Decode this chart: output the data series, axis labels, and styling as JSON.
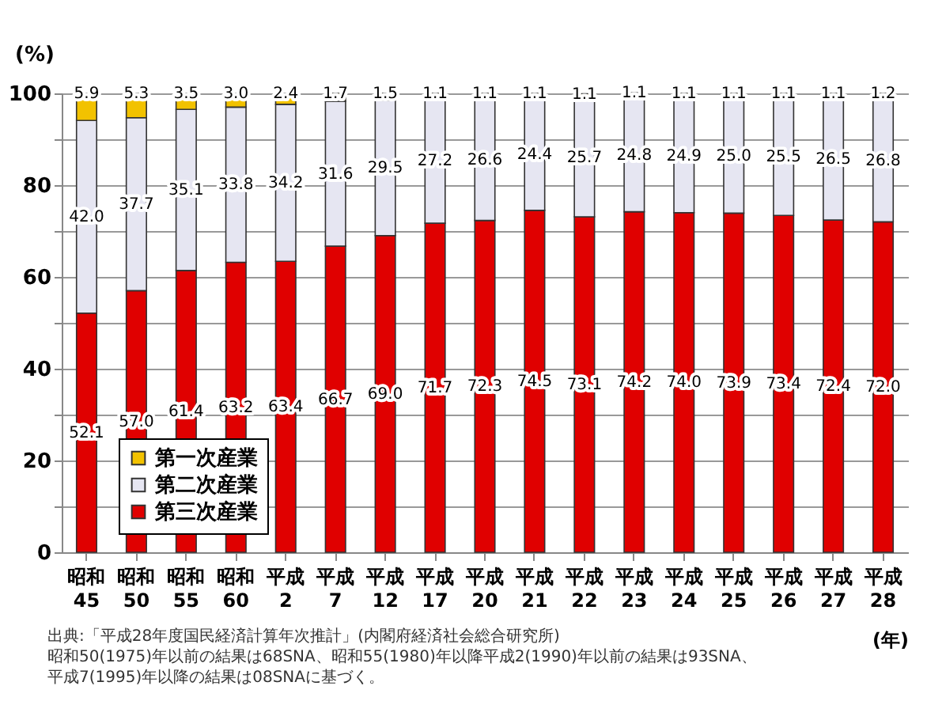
{
  "chart_data": {
    "type": "bar",
    "stacked": true,
    "ylabel": "(%)",
    "xlabel": "(年)",
    "categories": [
      "昭和 45",
      "昭和 50",
      "昭和 55",
      "昭和 60",
      "平成 2",
      "平成 7",
      "平成 12",
      "平成 17",
      "平成 20",
      "平成 21",
      "平成 22",
      "平成 23",
      "平成 24",
      "平成 25",
      "平成 26",
      "平成 27",
      "平成 28"
    ],
    "series": [
      {
        "name": "第三次産業",
        "color": "#e00000",
        "values": [
          52.1,
          57.0,
          61.4,
          63.2,
          63.4,
          66.7,
          69.0,
          71.7,
          72.3,
          74.5,
          73.1,
          74.2,
          74.0,
          73.9,
          73.4,
          72.4,
          72.0
        ],
        "value_labels": [
          "52.1",
          "57.0",
          "61.4",
          "63.2",
          "63.4",
          "66.7",
          "69.0",
          "71.7",
          "72.3",
          "74.5",
          "73.1",
          "74.2",
          "74.0",
          "73.9",
          "73.4",
          "72.4",
          "72.0"
        ]
      },
      {
        "name": "第二次産業",
        "color": "#e6e6f2",
        "values": [
          42.0,
          37.7,
          35.1,
          33.8,
          34.2,
          31.6,
          29.5,
          27.2,
          26.6,
          24.4,
          25.7,
          24.8,
          24.9,
          25.0,
          25.5,
          26.5,
          26.8
        ],
        "value_labels": [
          "42.0",
          "37.7",
          "35.1",
          "33.8",
          "34.2",
          "31.6",
          "29.5",
          "27.2",
          "26.6",
          "24.4",
          "25.7",
          "24.8",
          "24.9",
          "25.0",
          "25.5",
          "26.5",
          "26.8"
        ]
      },
      {
        "name": "第一次産業",
        "color": "#f2c200",
        "values": [
          5.9,
          5.3,
          3.5,
          3.0,
          2.4,
          1.7,
          1.5,
          1.1,
          1.1,
          1.1,
          1.1,
          1.1,
          1.1,
          1.1,
          1.1,
          1.1,
          1.2
        ],
        "value_labels": [
          "5.9",
          "5.3",
          "3.5",
          "3.0",
          "2.4",
          "1.7",
          "1.5",
          "1.1",
          "1.1",
          "1.1",
          "1.1",
          "1.1",
          "1.1",
          "1.1",
          "1.1",
          "1.1",
          "1.2"
        ]
      }
    ],
    "ylim": [
      0,
      100
    ],
    "yticks": [
      0,
      {
        "value": 10,
        "label": null
      },
      20,
      {
        "value": 30,
        "label": null
      },
      40,
      {
        "value": 50,
        "label": null
      },
      60,
      {
        "value": 70,
        "label": null
      },
      80,
      {
        "value": 90,
        "label": null
      },
      100
    ],
    "grid": "y",
    "legend": "bottom left",
    "annotations": [
      "出典:「平成28年度国民経済計算年次推計」(内閣府経済社会総合研究所)",
      "昭和50(1975)年以前の結果は68SNA、昭和55(1980)年以降平成2(1990)年以前の結果は93SNA、",
      "平成7(1995)年以降の結果は08SNAに基づく。"
    ]
  }
}
